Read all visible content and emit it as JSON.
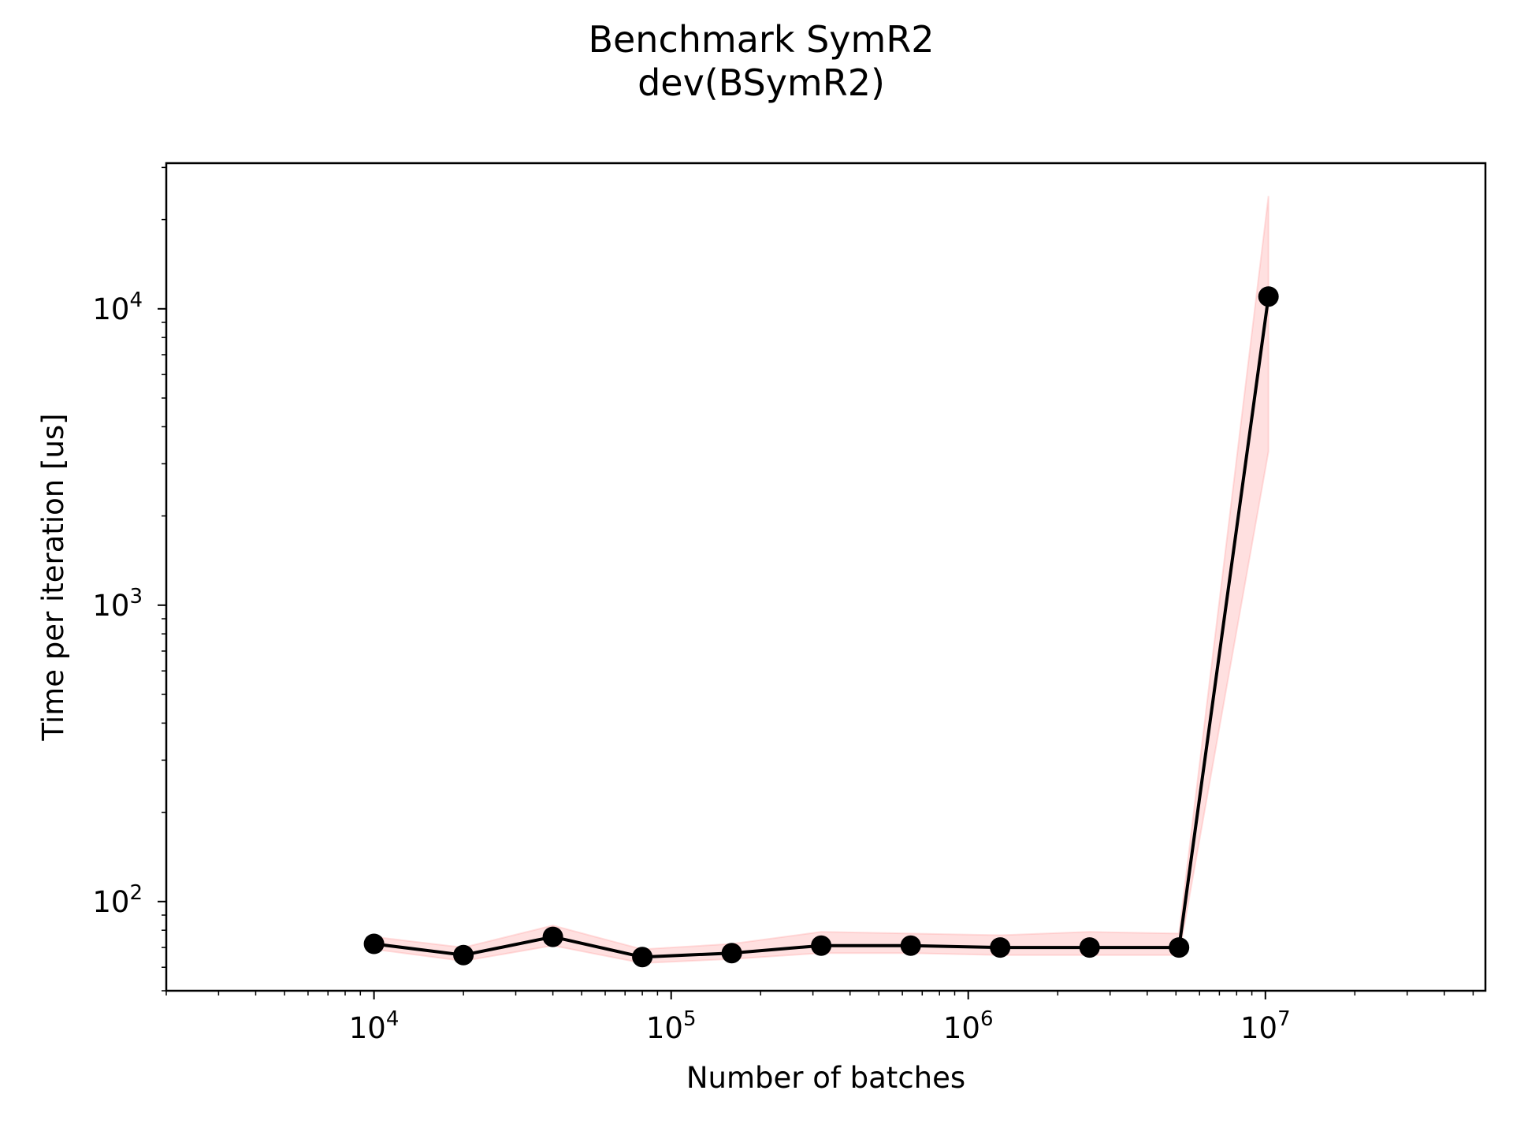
{
  "chart_data": {
    "type": "line",
    "title": "Benchmark SymR2",
    "subtitle": "dev(BSymR2)",
    "xlabel": "Number of batches",
    "ylabel": "Time per iteration [us]",
    "xscale": "log",
    "yscale": "log",
    "xlim": [
      2000,
      55000000
    ],
    "ylim": [
      50,
      31000
    ],
    "x_ticks": [
      {
        "value": 10000,
        "base": "10",
        "exp": "4"
      },
      {
        "value": 100000,
        "base": "10",
        "exp": "5"
      },
      {
        "value": 1000000,
        "base": "10",
        "exp": "6"
      },
      {
        "value": 10000000,
        "base": "10",
        "exp": "7"
      }
    ],
    "y_ticks": [
      {
        "value": 100,
        "base": "10",
        "exp": "2"
      },
      {
        "value": 1000,
        "base": "10",
        "exp": "3"
      },
      {
        "value": 10000,
        "base": "10",
        "exp": "4"
      }
    ],
    "grid": false,
    "legend": "none",
    "line_color": "#000000",
    "band_color": "#ff9999",
    "series": [
      {
        "x": [
          10000,
          20000,
          40000,
          80000,
          160000,
          320000,
          640000,
          1280000,
          2560000,
          5120000,
          10240000
        ],
        "values": [
          72,
          66,
          76,
          65,
          67,
          71,
          71,
          70,
          70,
          70,
          11000
        ],
        "lower": [
          69,
          63,
          71,
          62,
          64,
          67,
          67,
          66,
          66,
          66,
          3300
        ],
        "upper": [
          76,
          70,
          83,
          69,
          72,
          79,
          78,
          77,
          79,
          78,
          24000
        ]
      }
    ]
  }
}
